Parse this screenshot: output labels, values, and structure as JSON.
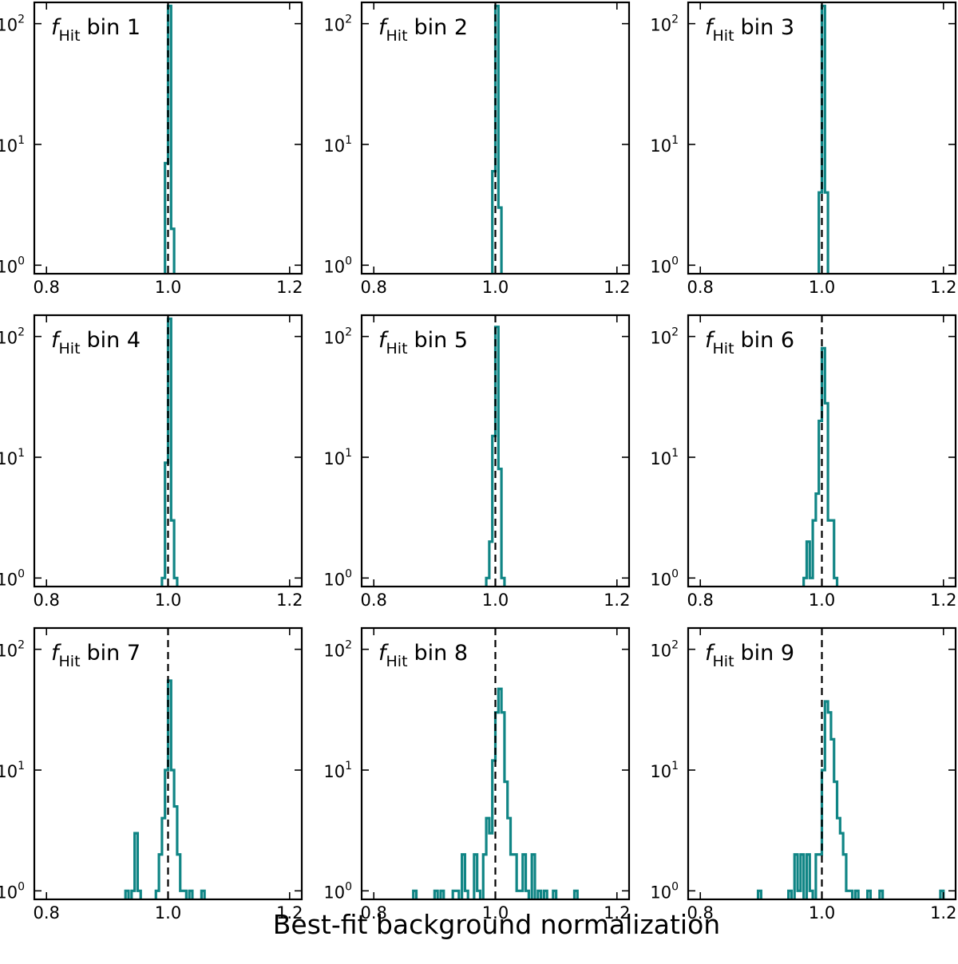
{
  "chart_data": {
    "type": "histogram-grid",
    "xlabel": "Best-fit background normalization",
    "xlim": [
      0.78,
      1.22
    ],
    "ylim_log": [
      0.85,
      150
    ],
    "x_ticks": [
      0.8,
      1.0,
      1.2
    ],
    "x_tick_labels": [
      "0.8",
      "1.0",
      "1.2"
    ],
    "y_ticks": [
      1,
      10,
      100
    ],
    "y_tick_base": "10",
    "y_tick_exponents": [
      "0",
      "1",
      "2"
    ],
    "reference_line_x": 1.0,
    "bin_width": 0.005,
    "series_color": "#108585",
    "panel_label_main": "f",
    "panel_label_sub": "Hit",
    "panels": [
      {
        "label": "bin 1",
        "bins": [
          [
            0.995,
            7
          ],
          [
            1.0,
            140
          ],
          [
            1.005,
            2
          ]
        ]
      },
      {
        "label": "bin 2",
        "bins": [
          [
            0.995,
            6
          ],
          [
            1.0,
            140
          ],
          [
            1.005,
            3
          ]
        ]
      },
      {
        "label": "bin 3",
        "bins": [
          [
            0.995,
            4
          ],
          [
            1.0,
            140
          ],
          [
            1.005,
            4
          ]
        ]
      },
      {
        "label": "bin 4",
        "bins": [
          [
            0.99,
            1
          ],
          [
            0.995,
            9
          ],
          [
            1.0,
            140
          ],
          [
            1.005,
            3
          ],
          [
            1.01,
            1
          ]
        ]
      },
      {
        "label": "bin 5",
        "bins": [
          [
            0.985,
            1
          ],
          [
            0.99,
            2
          ],
          [
            0.995,
            15
          ],
          [
            1.0,
            120
          ],
          [
            1.005,
            8
          ],
          [
            1.01,
            1
          ]
        ]
      },
      {
        "label": "bin 6",
        "bins": [
          [
            0.97,
            1
          ],
          [
            0.975,
            2
          ],
          [
            0.98,
            1
          ],
          [
            0.985,
            3
          ],
          [
            0.99,
            5
          ],
          [
            0.995,
            20
          ],
          [
            1.0,
            80
          ],
          [
            1.005,
            28
          ],
          [
            1.01,
            3
          ],
          [
            1.015,
            3
          ],
          [
            1.02,
            1
          ]
        ]
      },
      {
        "label": "bin 7",
        "bins": [
          [
            0.93,
            1
          ],
          [
            0.94,
            1
          ],
          [
            0.945,
            3
          ],
          [
            0.95,
            1
          ],
          [
            0.98,
            1
          ],
          [
            0.985,
            2
          ],
          [
            0.99,
            4
          ],
          [
            0.995,
            10
          ],
          [
            1.0,
            55
          ],
          [
            1.005,
            10
          ],
          [
            1.01,
            5
          ],
          [
            1.015,
            2
          ],
          [
            1.02,
            1
          ],
          [
            1.025,
            1
          ],
          [
            1.035,
            1
          ],
          [
            1.055,
            1
          ]
        ]
      },
      {
        "label": "bin 8",
        "bins": [
          [
            0.865,
            1
          ],
          [
            0.9,
            1
          ],
          [
            0.91,
            1
          ],
          [
            0.93,
            1
          ],
          [
            0.935,
            1
          ],
          [
            0.945,
            2
          ],
          [
            0.95,
            1
          ],
          [
            0.965,
            2
          ],
          [
            0.97,
            1
          ],
          [
            0.98,
            2
          ],
          [
            0.985,
            4
          ],
          [
            0.99,
            3
          ],
          [
            0.995,
            12
          ],
          [
            1.0,
            30
          ],
          [
            1.005,
            47
          ],
          [
            1.01,
            30
          ],
          [
            1.015,
            8
          ],
          [
            1.02,
            4
          ],
          [
            1.025,
            2
          ],
          [
            1.03,
            2
          ],
          [
            1.035,
            1
          ],
          [
            1.04,
            1
          ],
          [
            1.045,
            2
          ],
          [
            1.05,
            1
          ],
          [
            1.06,
            2
          ],
          [
            1.07,
            1
          ],
          [
            1.08,
            1
          ],
          [
            1.095,
            1
          ],
          [
            1.13,
            1
          ]
        ]
      },
      {
        "label": "bin 9",
        "bins": [
          [
            0.895,
            1
          ],
          [
            0.945,
            1
          ],
          [
            0.955,
            2
          ],
          [
            0.96,
            1
          ],
          [
            0.965,
            2
          ],
          [
            0.975,
            2
          ],
          [
            0.98,
            1
          ],
          [
            0.99,
            2
          ],
          [
            0.995,
            2
          ],
          [
            1.0,
            10
          ],
          [
            1.005,
            37
          ],
          [
            1.01,
            30
          ],
          [
            1.015,
            18
          ],
          [
            1.02,
            8
          ],
          [
            1.025,
            4
          ],
          [
            1.03,
            3
          ],
          [
            1.035,
            2
          ],
          [
            1.04,
            1
          ],
          [
            1.045,
            1
          ],
          [
            1.055,
            1
          ],
          [
            1.075,
            1
          ],
          [
            1.095,
            1
          ],
          [
            1.195,
            1
          ]
        ]
      }
    ]
  }
}
